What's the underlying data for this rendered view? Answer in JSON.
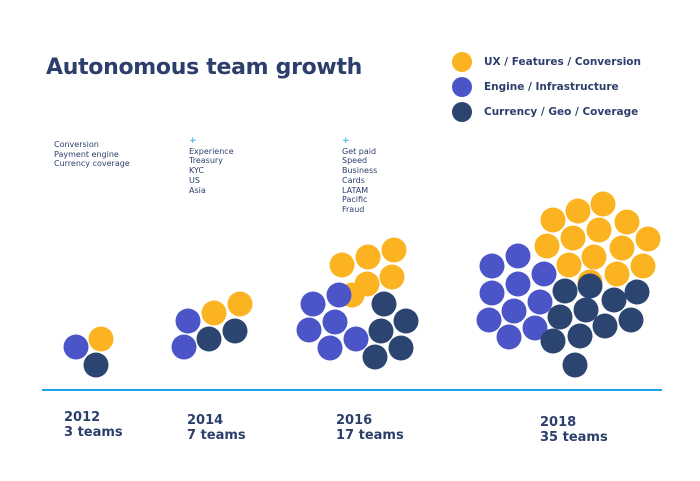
{
  "title": "Autonomous team growth",
  "legend": [
    {
      "label": "UX / Features / Conversion",
      "color": "#fbb321"
    },
    {
      "label": "Engine / Infrastructure",
      "color": "#4b55c8"
    },
    {
      "label": "Currency / Geo / Coverage",
      "color": "#2b4470"
    }
  ],
  "colors": {
    "axis": "#1aa3e8",
    "plus": "#1aa3e8",
    "text": "#2c3e6b"
  },
  "chart_data": {
    "type": "bubble-cluster",
    "title": "Autonomous team growth",
    "categories": [
      "2012",
      "2014",
      "2016",
      "2018"
    ],
    "labels": [
      "3 teams",
      "7 teams",
      "17 teams",
      "35 teams"
    ],
    "totals": [
      3,
      7,
      17,
      35
    ],
    "series": [
      {
        "name": "UX / Features / Conversion",
        "values": [
          1,
          2,
          6,
          14
        ]
      },
      {
        "name": "Engine / Infrastructure",
        "values": [
          1,
          3,
          6,
          10
        ]
      },
      {
        "name": "Currency / Geo / Coverage",
        "values": [
          1,
          2,
          5,
          11
        ]
      }
    ],
    "domains": [
      {
        "plus": "",
        "items": [
          "Conversion",
          "Payment engine",
          "Currency coverage"
        ]
      },
      {
        "plus": "+",
        "items": [
          "Experience",
          "Treasury",
          "KYC",
          "US",
          "Asia"
        ]
      },
      {
        "plus": "+",
        "items": [
          "Get paid",
          "Speed",
          "Business",
          "Cards",
          "LATAM",
          "Pacific",
          "Fraud"
        ]
      },
      {
        "plus": "",
        "items": []
      }
    ]
  }
}
